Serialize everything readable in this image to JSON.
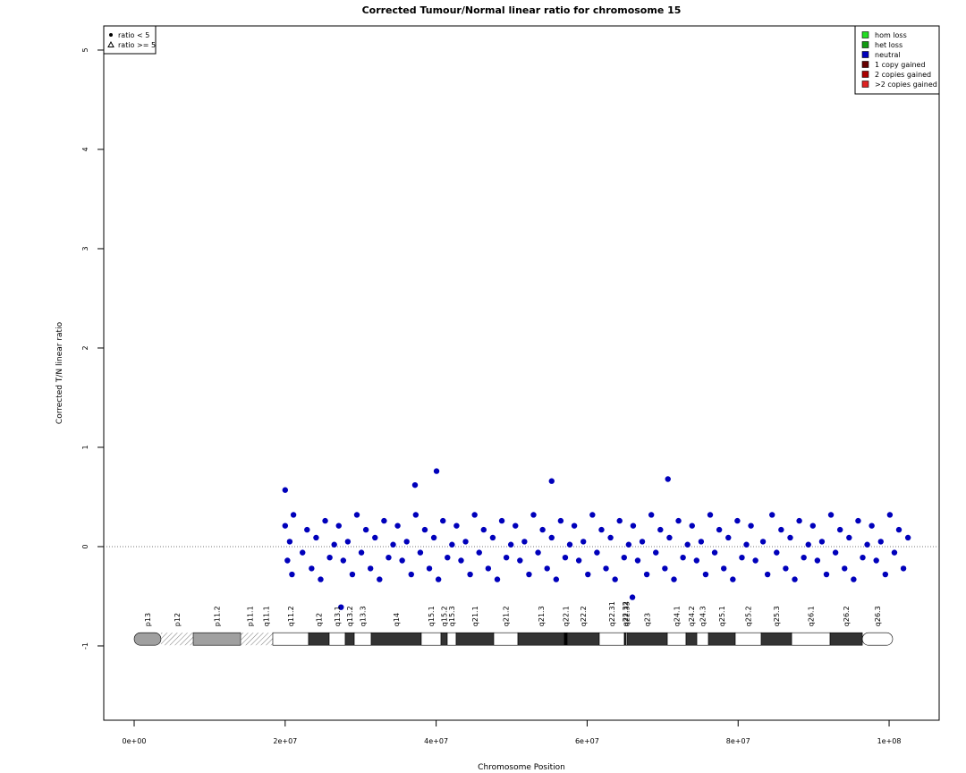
{
  "chart_data": {
    "type": "scatter",
    "title": "Corrected Tumour/Normal linear ratio for chromosome  15",
    "x_label": "Chromosome Position",
    "y_label": "Corrected T/N linear ratio",
    "xlim": [
      -4030000,
      106630000
    ],
    "ylim": [
      -1.748,
      5.243
    ],
    "xticks": [
      {
        "value": 0,
        "label": "0e+00"
      },
      {
        "value": 20000000,
        "label": "2e+07"
      },
      {
        "value": 40000000,
        "label": "4e+07"
      },
      {
        "value": 60000000,
        "label": "6e+07"
      },
      {
        "value": 80000000,
        "label": "8e+07"
      },
      {
        "value": 100000000,
        "label": "1e+08"
      }
    ],
    "yticks": [
      -1,
      0,
      1,
      2,
      3,
      4,
      5
    ],
    "reference_line": 0,
    "marker_legend": [
      "ratio < 5",
      "ratio >= 5"
    ],
    "state_legend": [
      {
        "name": "hom loss",
        "color": "#22dd22"
      },
      {
        "name": "het loss",
        "color": "#119911"
      },
      {
        "name": "neutral",
        "color": "#0000bb"
      },
      {
        "name": "1 copy gained",
        "color": "#660000"
      },
      {
        "name": "2 copies gained",
        "color": "#aa0000"
      },
      {
        "name": ">2 copies gained",
        "color": "#dd2222"
      }
    ],
    "points": {
      "color": "#0000bb",
      "x": [
        20000000.0,
        20300000.0,
        20600000.0,
        20900000.0,
        21100000.0,
        22300000.0,
        22900000.0,
        23500000.0,
        24100000.0,
        24700000.0,
        25300000.0,
        25900000.0,
        26500000.0,
        27100000.0,
        27700000.0,
        28300000.0,
        28900000.0,
        29500000.0,
        30100000.0,
        30700000.0,
        31300000.0,
        31900000.0,
        32500000.0,
        33100000.0,
        33700000.0,
        34300000.0,
        34900000.0,
        35500000.0,
        36100000.0,
        36700000.0,
        37300000.0,
        37900000.0,
        38500000.0,
        39100000.0,
        39700000.0,
        40300000.0,
        40900000.0,
        41500000.0,
        42100000.0,
        42700000.0,
        43300000.0,
        43900000.0,
        44500000.0,
        45100000.0,
        45700000.0,
        46300000.0,
        46900000.0,
        47500000.0,
        48100000.0,
        48700000.0,
        49300000.0,
        49900000.0,
        50500000.0,
        51100000.0,
        51700000.0,
        52300000.0,
        52900000.0,
        53500000.0,
        54100000.0,
        54700000.0,
        55300000.0,
        55900000.0,
        56500000.0,
        57100000.0,
        57700000.0,
        58300000.0,
        58900000.0,
        59500000.0,
        60100000.0,
        60700000.0,
        61300000.0,
        61900000.0,
        62500000.0,
        63100000.0,
        63700000.0,
        64300000.0,
        64900000.0,
        65500000.0,
        66100000.0,
        66700000.0,
        67300000.0,
        67900000.0,
        68500000.0,
        69100000.0,
        69700000.0,
        70300000.0,
        70900000.0,
        71500000.0,
        72100000.0,
        72700000.0,
        73300000.0,
        73900000.0,
        74500000.0,
        75100000.0,
        75700000.0,
        76300000.0,
        76900000.0,
        77500000.0,
        78100000.0,
        78700000.0,
        79300000.0,
        79900000.0,
        80500000.0,
        81100000.0,
        81700000.0,
        82300000.0,
        83300000.0,
        83900000.0,
        84500000.0,
        85100000.0,
        85700000.0,
        86300000.0,
        86900000.0,
        87500000.0,
        88100000.0,
        88700000.0,
        89300000.0,
        89900000.0,
        90500000.0,
        91100000.0,
        91700000.0,
        92300000.0,
        92900000.0,
        93500000.0,
        94100000.0,
        94700000.0,
        95300000.0,
        95900000.0,
        96500000.0,
        97100000.0,
        97700000.0,
        98300000.0,
        98900000.0,
        99500000.0,
        100100000.0,
        100700000.0,
        101300000.0,
        101900000.0,
        102500000.0,
        20000000.0,
        40050000.0,
        70700000.0,
        27400000.0,
        66000000.0,
        37200000.0,
        55300000.0
      ],
      "y": [
        0.21,
        -0.14,
        0.05,
        -0.28,
        0.32,
        -0.06,
        0.17,
        -0.22,
        0.09,
        -0.33,
        0.26,
        -0.11,
        0.02,
        0.21,
        -0.14,
        0.05,
        -0.28,
        0.32,
        -0.06,
        0.17,
        -0.22,
        0.09,
        -0.33,
        0.26,
        -0.11,
        0.02,
        0.21,
        -0.14,
        0.05,
        -0.28,
        0.32,
        -0.06,
        0.17,
        -0.22,
        0.09,
        -0.33,
        0.26,
        -0.11,
        0.02,
        0.21,
        -0.14,
        0.05,
        -0.28,
        0.32,
        -0.06,
        0.17,
        -0.22,
        0.09,
        -0.33,
        0.26,
        -0.11,
        0.02,
        0.21,
        -0.14,
        0.05,
        -0.28,
        0.32,
        -0.06,
        0.17,
        -0.22,
        0.09,
        -0.33,
        0.26,
        -0.11,
        0.02,
        0.21,
        -0.14,
        0.05,
        -0.28,
        0.32,
        -0.06,
        0.17,
        -0.22,
        0.09,
        -0.33,
        0.26,
        -0.11,
        0.02,
        0.21,
        -0.14,
        0.05,
        -0.28,
        0.32,
        -0.06,
        0.17,
        -0.22,
        0.09,
        -0.33,
        0.26,
        -0.11,
        0.02,
        0.21,
        -0.14,
        0.05,
        -0.28,
        0.32,
        -0.06,
        0.17,
        -0.22,
        0.09,
        -0.33,
        0.26,
        -0.11,
        0.02,
        0.21,
        -0.14,
        0.05,
        -0.28,
        0.32,
        -0.06,
        0.17,
        -0.22,
        0.09,
        -0.33,
        0.26,
        -0.11,
        0.02,
        0.21,
        -0.14,
        0.05,
        -0.28,
        0.32,
        -0.06,
        0.17,
        -0.22,
        0.09,
        -0.33,
        0.26,
        -0.11,
        0.02,
        0.21,
        -0.14,
        0.05,
        -0.28,
        0.32,
        -0.06,
        0.17,
        -0.22,
        0.09,
        0.57,
        0.76,
        0.68,
        -0.61,
        -0.51,
        0.62,
        0.66
      ]
    },
    "ideogram": {
      "y": -0.93,
      "bands": [
        {
          "name": "p13",
          "start": 0,
          "end": 3550000,
          "color": "#a0a0a0"
        },
        {
          "name": "p12",
          "start": 3550000,
          "end": 7820000,
          "color": "#ffffff",
          "hatched": true
        },
        {
          "name": "p11.2",
          "start": 7820000,
          "end": 14100000,
          "color": "#a0a0a0"
        },
        {
          "name": "p11.1",
          "start": 14100000,
          "end": 16590000,
          "color": "#ffffff",
          "hatched": true
        },
        {
          "name": "q11.1",
          "start": 16590000,
          "end": 18360000,
          "color": "#ffffff",
          "hatched": true
        },
        {
          "name": "q11.2",
          "start": 18360000,
          "end": 23100000,
          "color": "#ffffff"
        },
        {
          "name": "q12",
          "start": 23100000,
          "end": 25830000,
          "color": "#333333"
        },
        {
          "name": "q13.1",
          "start": 25830000,
          "end": 27960000,
          "color": "#ffffff"
        },
        {
          "name": "q13.2",
          "start": 27960000,
          "end": 29150000,
          "color": "#333333"
        },
        {
          "name": "q13.3",
          "start": 29150000,
          "end": 31400000,
          "color": "#ffffff"
        },
        {
          "name": "q14",
          "start": 31400000,
          "end": 38030000,
          "color": "#333333"
        },
        {
          "name": "q15.1",
          "start": 38030000,
          "end": 40640000,
          "color": "#ffffff"
        },
        {
          "name": "q15.2",
          "start": 40640000,
          "end": 41470000,
          "color": "#333333"
        },
        {
          "name": "q15.3",
          "start": 41470000,
          "end": 42650000,
          "color": "#ffffff"
        },
        {
          "name": "q21.1",
          "start": 42650000,
          "end": 47630000,
          "color": "#333333"
        },
        {
          "name": "q21.2",
          "start": 47630000,
          "end": 50830000,
          "color": "#ffffff"
        },
        {
          "name": "q21.3",
          "start": 50830000,
          "end": 56990000,
          "color": "#333333"
        },
        {
          "name": "q22.1",
          "start": 56990000,
          "end": 57350000,
          "color": "#000000"
        },
        {
          "name": "q22.2",
          "start": 57350000,
          "end": 61610000,
          "color": "#333333"
        },
        {
          "name": "q22.31",
          "start": 61610000,
          "end": 64930000,
          "color": "#ffffff"
        },
        {
          "name": "q22.32",
          "start": 64930000,
          "end": 65110000,
          "color": "#000000"
        },
        {
          "name": "q22.33",
          "start": 65110000,
          "end": 65280000,
          "color": "#ffffff"
        },
        {
          "name": "q23",
          "start": 65280000,
          "end": 70620000,
          "color": "#333333"
        },
        {
          "name": "q24.1",
          "start": 70620000,
          "end": 73100000,
          "color": "#ffffff"
        },
        {
          "name": "q24.2",
          "start": 73100000,
          "end": 74530000,
          "color": "#333333"
        },
        {
          "name": "q24.3",
          "start": 74530000,
          "end": 76070000,
          "color": "#ffffff"
        },
        {
          "name": "q25.1",
          "start": 76070000,
          "end": 79620000,
          "color": "#333333"
        },
        {
          "name": "q25.2",
          "start": 79620000,
          "end": 83060000,
          "color": "#ffffff"
        },
        {
          "name": "q25.3",
          "start": 83060000,
          "end": 87090000,
          "color": "#333333"
        },
        {
          "name": "q26.1",
          "start": 87090000,
          "end": 92180000,
          "color": "#ffffff"
        },
        {
          "name": "q26.2",
          "start": 92180000,
          "end": 96450000,
          "color": "#333333"
        },
        {
          "name": "q26.3",
          "start": 96450000,
          "end": 100470000,
          "color": "#ffffff"
        }
      ]
    }
  }
}
